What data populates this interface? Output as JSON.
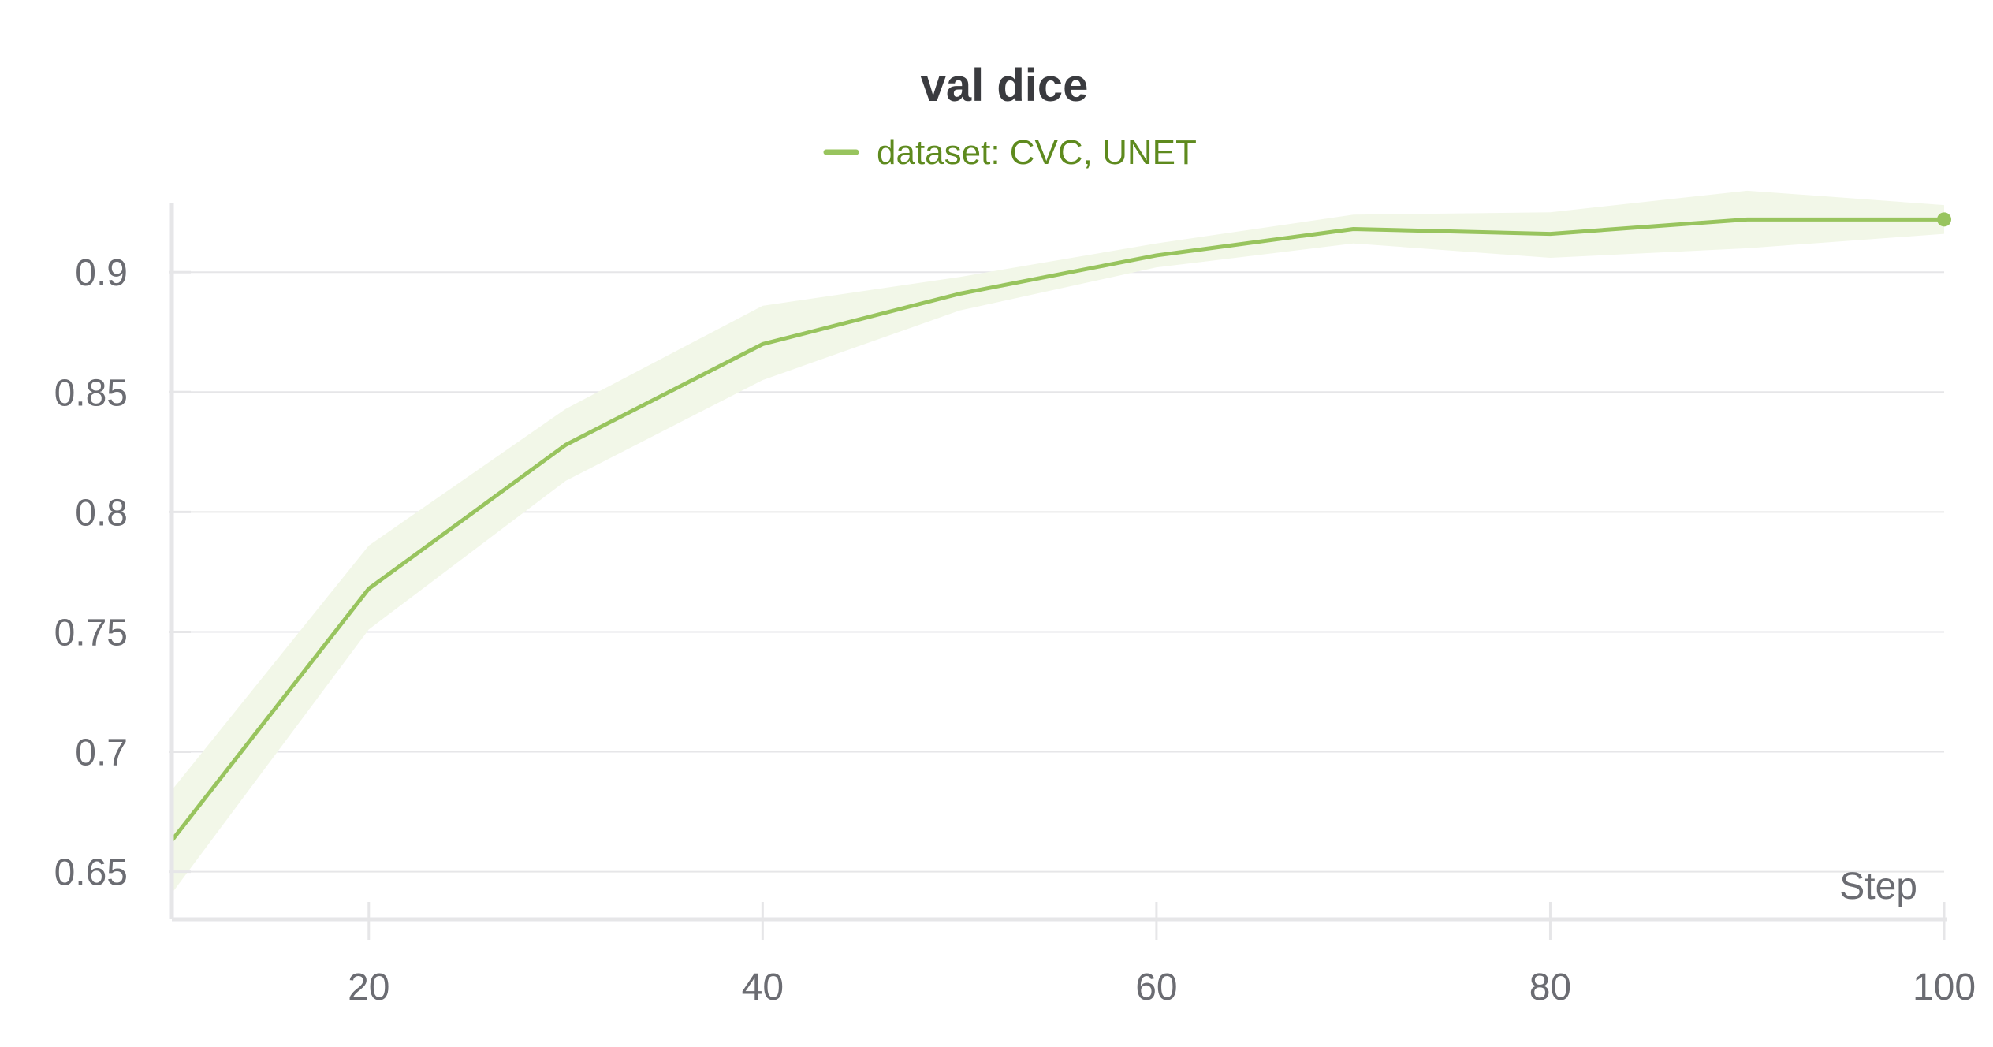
{
  "chart_data": {
    "type": "line",
    "title": "val dice",
    "xlabel": "Step",
    "ylabel": "",
    "xlim": [
      10,
      100
    ],
    "ylim": [
      0.64,
      0.93
    ],
    "x_ticks": [
      "20",
      "40",
      "60",
      "80",
      "100"
    ],
    "x_tick_values": [
      20,
      40,
      60,
      80,
      100
    ],
    "y_ticks": [
      "0.65",
      "0.7",
      "0.75",
      "0.8",
      "0.85",
      "0.9"
    ],
    "y_tick_values": [
      0.65,
      0.7,
      0.75,
      0.8,
      0.85,
      0.9
    ],
    "grid": true,
    "legend_position": "top-center",
    "series": [
      {
        "name": "dataset: CVC, UNET",
        "color": "#98c45e",
        "band_color": "#f2f7e8",
        "legend_text_color": "#5e8a1e",
        "x": [
          10,
          20,
          30,
          40,
          50,
          60,
          70,
          80,
          90,
          100
        ],
        "values": [
          0.663,
          0.768,
          0.828,
          0.87,
          0.891,
          0.907,
          0.918,
          0.916,
          0.922,
          0.922
        ],
        "band_upper": [
          0.684,
          0.786,
          0.843,
          0.886,
          0.898,
          0.912,
          0.924,
          0.925,
          0.934,
          0.928
        ],
        "band_lower": [
          0.641,
          0.751,
          0.813,
          0.855,
          0.884,
          0.902,
          0.912,
          0.906,
          0.91,
          0.916
        ]
      }
    ]
  }
}
